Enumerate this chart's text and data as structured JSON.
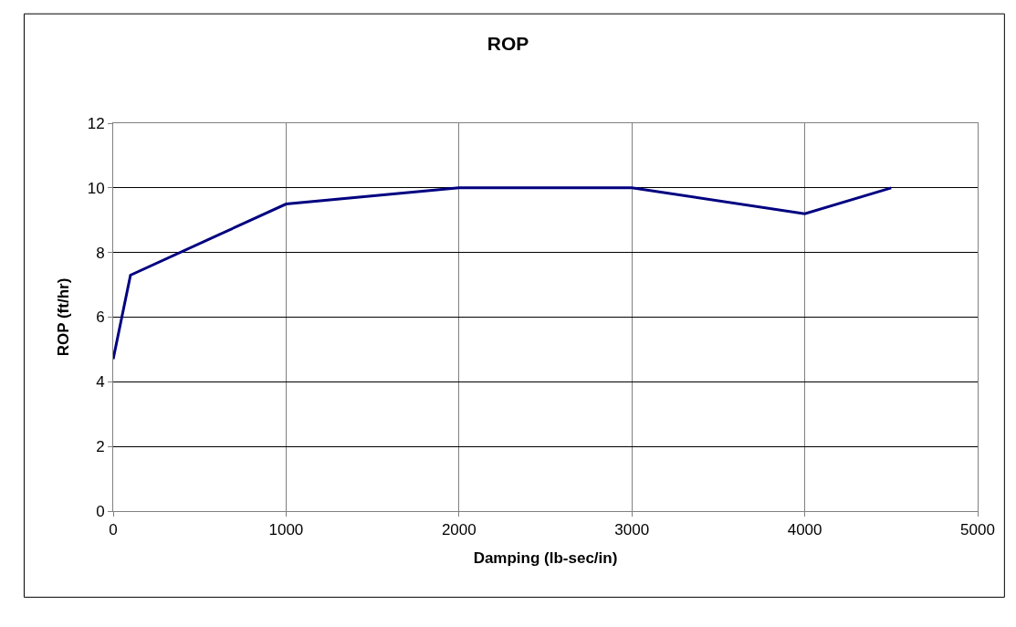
{
  "chart_data": {
    "type": "line",
    "title": "ROP",
    "xlabel": "Damping (lb-sec/in)",
    "ylabel": "ROP (ft/hr)",
    "x": [
      0,
      100,
      1000,
      2000,
      3000,
      4000,
      4500
    ],
    "series": [
      {
        "color": "#000080",
        "values": [
          4.7,
          7.3,
          9.5,
          10,
          10,
          9.2,
          10
        ]
      }
    ],
    "xlim": [
      0,
      5000
    ],
    "xticks": [
      0,
      1000,
      2000,
      3000,
      4000,
      5000
    ],
    "ylim": [
      0,
      12
    ],
    "yticks": [
      0,
      2,
      4,
      6,
      8,
      10,
      12
    ],
    "grid": true,
    "marker": "none",
    "line_style": "solid"
  }
}
